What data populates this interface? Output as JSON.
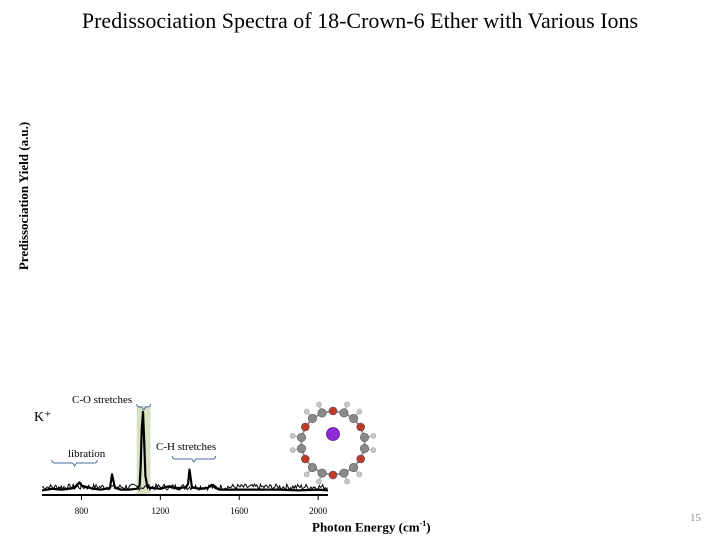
{
  "title": "Predissociation Spectra of 18-Crown-6 Ether with Various Ions",
  "slide_number": "15",
  "chart_data": {
    "type": "line",
    "ylabel": "Predissociation Yield (a.u.)",
    "xlabel": "Photon Energy (cm-1)",
    "xlabel_parts": {
      "text": "Photon Energy (cm",
      "sup": "-1",
      "close": ")"
    },
    "xticks": [
      800,
      1200,
      1600,
      2000
    ],
    "xlim": [
      600,
      2050
    ],
    "series": [
      {
        "name": "K+",
        "x": [
          600,
          650,
          700,
          760,
          790,
          800,
          830,
          860,
          900,
          945,
          955,
          970,
          1000,
          1040,
          1080,
          1095,
          1100,
          1106,
          1112,
          1117,
          1124,
          1135,
          1160,
          1200,
          1240,
          1270,
          1300,
          1330,
          1340,
          1348,
          1360,
          1400,
          1440,
          1460,
          1480,
          1500,
          1600,
          1700,
          1800,
          1900,
          2000,
          2050
        ],
        "y": [
          0.02,
          0.04,
          0.03,
          0.05,
          0.12,
          0.08,
          0.06,
          0.04,
          0.03,
          0.05,
          0.22,
          0.05,
          0.03,
          0.03,
          0.04,
          0.08,
          0.3,
          0.8,
          1.0,
          0.7,
          0.2,
          0.06,
          0.05,
          0.04,
          0.07,
          0.05,
          0.05,
          0.06,
          0.1,
          0.28,
          0.06,
          0.04,
          0.05,
          0.09,
          0.05,
          0.03,
          0.03,
          0.03,
          0.03,
          0.02,
          0.03,
          0.02
        ]
      }
    ],
    "annotations": [
      {
        "text": "C-O stretches",
        "x": 1120
      },
      {
        "text": "libration",
        "x": 830
      },
      {
        "text": "C-H stretches",
        "x": 1380
      }
    ],
    "highlight": {
      "from": 1080,
      "to": 1150,
      "color": "#d9e2c4"
    },
    "ion_label": "K⁺",
    "line_color": "#000000"
  },
  "molecule": {
    "ring_oxygen_color": "#c0392b",
    "carbon_color": "#8a8a8a",
    "hydrogen_color": "#c8c8c8",
    "ion_color": "#8e2bd6"
  }
}
